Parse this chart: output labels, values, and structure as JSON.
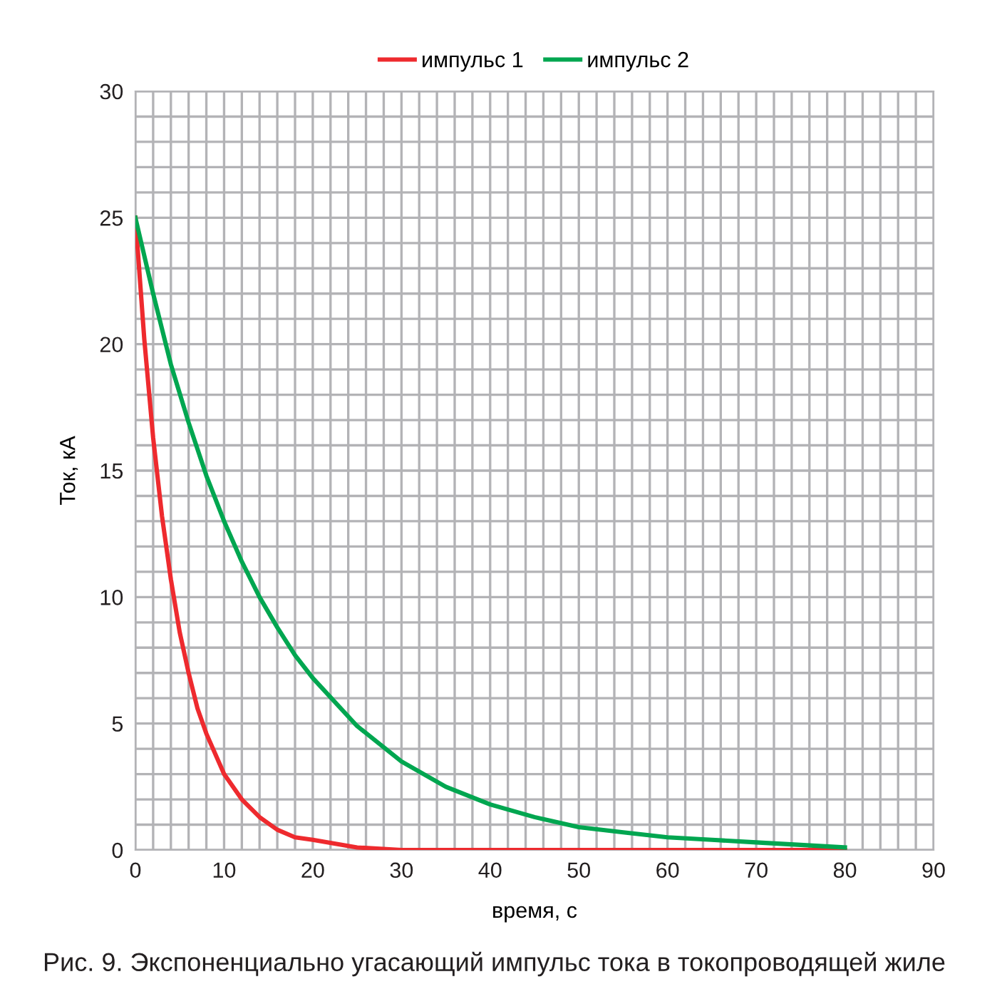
{
  "chart_data": {
    "type": "line",
    "xlabel": "время, с",
    "ylabel": "Ток, кА",
    "annotations": [
      "Рис. 9. Экспоненциально угасающий импульс тока в токопроводящей жиле"
    ],
    "series": [
      {
        "name": "импульс 1",
        "color": "#ee2a2e",
        "x": [
          0,
          1,
          2,
          3,
          4,
          5,
          6,
          7,
          8,
          10,
          12,
          14,
          16,
          18,
          20,
          25,
          30,
          40,
          50,
          60,
          70,
          80
        ],
        "values": [
          25,
          20.2,
          16.3,
          13.2,
          10.7,
          8.6,
          7.0,
          5.6,
          4.6,
          3.0,
          2.0,
          1.3,
          0.8,
          0.5,
          0.4,
          0.1,
          0,
          0,
          0,
          0,
          0,
          0
        ]
      },
      {
        "name": "импульс 2",
        "color": "#00a650",
        "x": [
          0,
          2,
          4,
          6,
          8,
          10,
          12,
          14,
          16,
          18,
          20,
          25,
          30,
          35,
          40,
          45,
          50,
          55,
          60,
          65,
          70,
          75,
          80
        ],
        "values": [
          25,
          22.0,
          19.2,
          16.9,
          14.8,
          13.0,
          11.4,
          10.0,
          8.8,
          7.7,
          6.8,
          4.9,
          3.5,
          2.5,
          1.8,
          1.3,
          0.9,
          0.7,
          0.5,
          0.4,
          0.3,
          0.2,
          0.1
        ]
      }
    ],
    "xlim": [
      0,
      90
    ],
    "xticks": [
      0,
      {
        "value": 2,
        "label": null
      },
      {
        "value": 4,
        "label": null
      },
      {
        "value": 6,
        "label": null
      },
      {
        "value": 8,
        "label": null
      },
      10,
      {
        "value": 12,
        "label": null
      },
      {
        "value": 14,
        "label": null
      },
      {
        "value": 16,
        "label": null
      },
      {
        "value": 18,
        "label": null
      },
      20,
      {
        "value": 22,
        "label": null
      },
      {
        "value": 24,
        "label": null
      },
      {
        "value": 26,
        "label": null
      },
      {
        "value": 28,
        "label": null
      },
      30,
      {
        "value": 32,
        "label": null
      },
      {
        "value": 34,
        "label": null
      },
      {
        "value": 36,
        "label": null
      },
      {
        "value": 38,
        "label": null
      },
      40,
      {
        "value": 42,
        "label": null
      },
      {
        "value": 44,
        "label": null
      },
      {
        "value": 46,
        "label": null
      },
      {
        "value": 48,
        "label": null
      },
      50,
      {
        "value": 52,
        "label": null
      },
      {
        "value": 54,
        "label": null
      },
      {
        "value": 56,
        "label": null
      },
      {
        "value": 58,
        "label": null
      },
      60,
      {
        "value": 62,
        "label": null
      },
      {
        "value": 64,
        "label": null
      },
      {
        "value": 66,
        "label": null
      },
      {
        "value": 68,
        "label": null
      },
      70,
      {
        "value": 72,
        "label": null
      },
      {
        "value": 74,
        "label": null
      },
      {
        "value": 76,
        "label": null
      },
      {
        "value": 78,
        "label": null
      },
      80,
      {
        "value": 82,
        "label": null
      },
      {
        "value": 84,
        "label": null
      },
      {
        "value": 86,
        "label": null
      },
      {
        "value": 88,
        "label": null
      },
      90
    ],
    "ylim": [
      0,
      30
    ],
    "yticks": [
      0,
      {
        "value": 1,
        "label": null
      },
      {
        "value": 2,
        "label": null
      },
      {
        "value": 3,
        "label": null
      },
      {
        "value": 4,
        "label": null
      },
      5,
      {
        "value": 6,
        "label": null
      },
      {
        "value": 7,
        "label": null
      },
      {
        "value": 8,
        "label": null
      },
      {
        "value": 9,
        "label": null
      },
      10,
      {
        "value": 11,
        "label": null
      },
      {
        "value": 12,
        "label": null
      },
      {
        "value": 13,
        "label": null
      },
      {
        "value": 14,
        "label": null
      },
      15,
      {
        "value": 16,
        "label": null
      },
      {
        "value": 17,
        "label": null
      },
      {
        "value": 18,
        "label": null
      },
      {
        "value": 19,
        "label": null
      },
      20,
      {
        "value": 21,
        "label": null
      },
      {
        "value": 22,
        "label": null
      },
      {
        "value": 23,
        "label": null
      },
      {
        "value": 24,
        "label": null
      },
      25,
      {
        "value": 26,
        "label": null
      },
      {
        "value": 27,
        "label": null
      },
      {
        "value": 28,
        "label": null
      },
      {
        "value": 29,
        "label": null
      },
      30
    ],
    "grid": true,
    "legend": "top",
    "marker": "none",
    "line_style": "solid"
  }
}
